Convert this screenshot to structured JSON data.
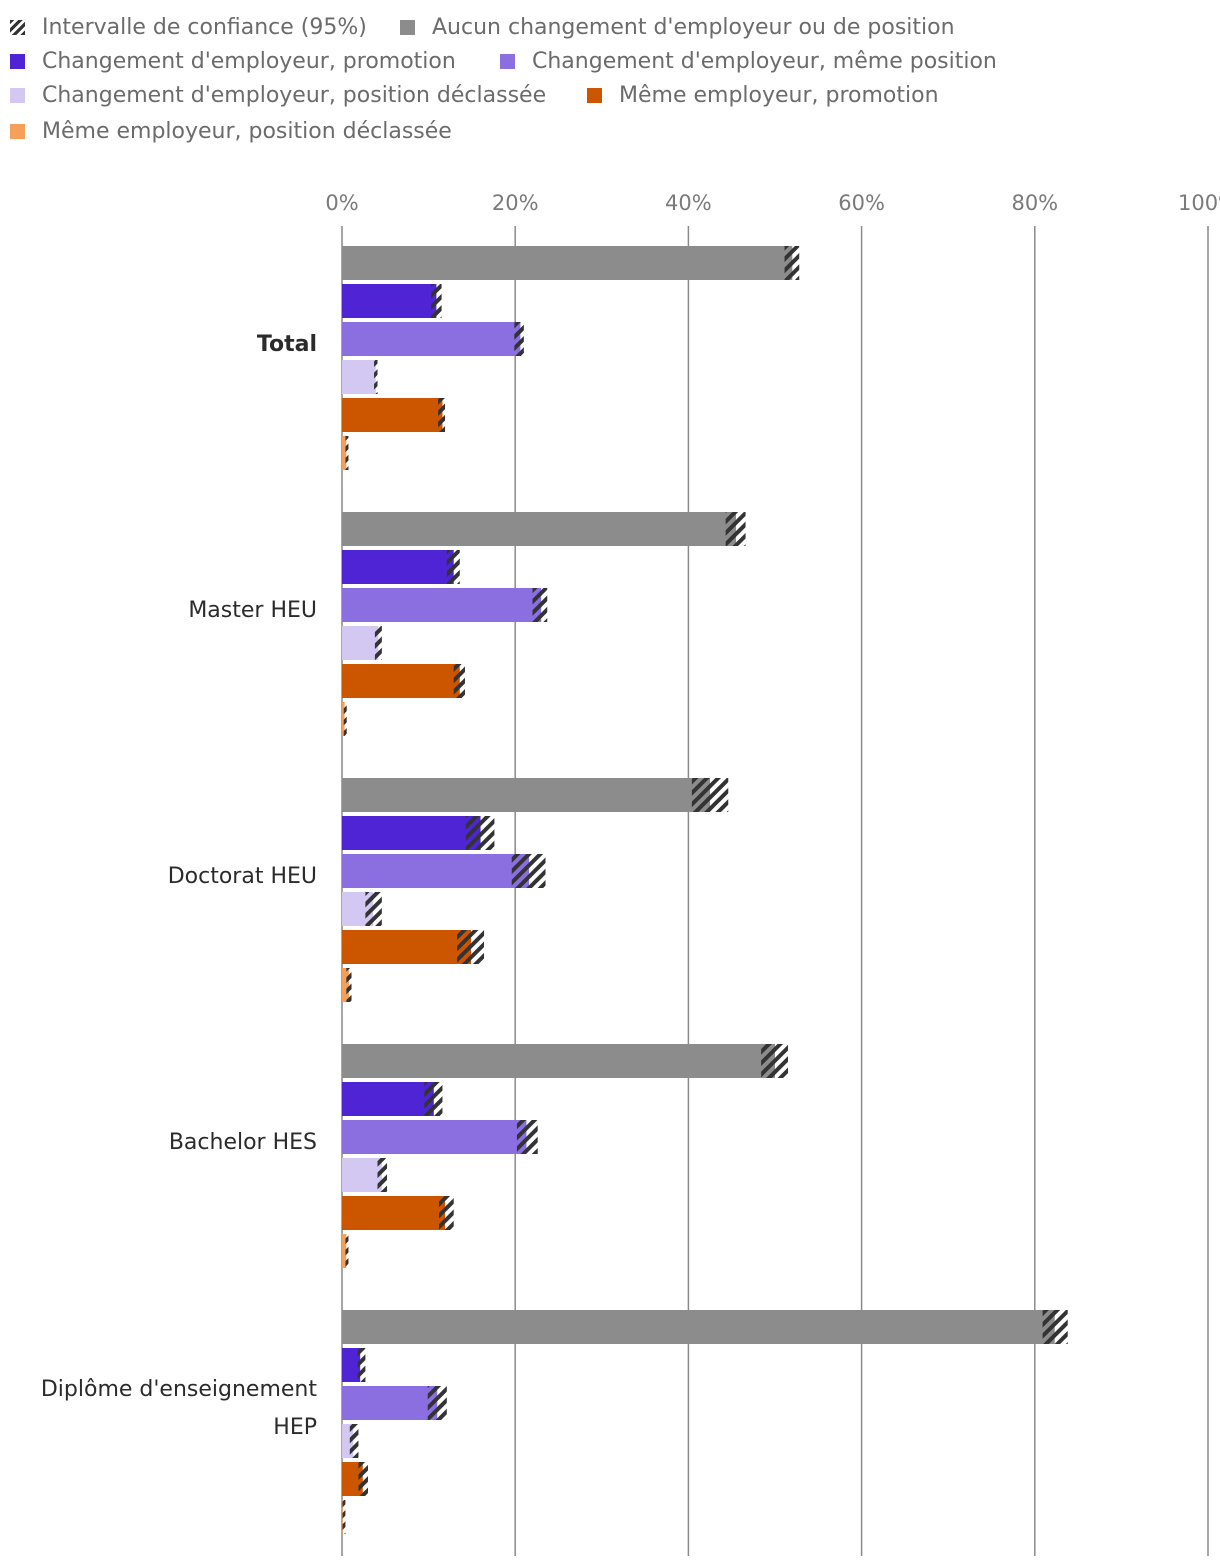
{
  "chart_data": {
    "type": "bar",
    "orientation": "horizontal",
    "title": "",
    "xlabel": "",
    "ylabel": "",
    "xlim": [
      0,
      100
    ],
    "x_ticks": [
      "0%",
      "20%",
      "40%",
      "60%",
      "80%",
      "100%"
    ],
    "grid": true,
    "legend_position": "top",
    "legend": {
      "ci_label": "Intervalle de confiance (95%)",
      "series_labels": [
        "Aucun changement d'employeur ou de position",
        "Changement d'employeur, promotion",
        "Changement d'employeur, même position",
        "Changement d'employeur, position déclassée",
        "Même employeur, promotion",
        "Même employeur, position déclassée"
      ]
    },
    "categories": [
      {
        "label": "Total",
        "bold": true
      },
      {
        "label": "Master HEU",
        "bold": false
      },
      {
        "label": "Doctorat HEU",
        "bold": false
      },
      {
        "label": "Bachelor HES",
        "bold": false
      },
      {
        "label": "Diplôme d'enseignement HEP",
        "label_lines": [
          "Diplôme d'enseignement",
          "HEP"
        ],
        "bold": false
      }
    ],
    "series": [
      {
        "name": "Aucun changement d'employeur ou de position",
        "color": "#8c8c8c",
        "values": [
          52.0,
          45.5,
          42.5,
          50.0,
          82.3
        ],
        "ci_low": [
          51.1,
          44.3,
          40.4,
          48.4,
          80.9
        ],
        "ci_high": [
          52.8,
          46.6,
          44.6,
          51.5,
          83.8
        ]
      },
      {
        "name": "Changement d'employeur, promotion",
        "color": "#4f24d4",
        "values": [
          10.9,
          12.9,
          16.0,
          10.6,
          2.1
        ],
        "ci_low": [
          10.3,
          12.1,
          14.3,
          9.5,
          1.8
        ],
        "ci_high": [
          11.5,
          13.6,
          17.6,
          11.6,
          2.7
        ]
      },
      {
        "name": "Changement d'employeur, même position",
        "color": "#8b6ee0",
        "values": [
          20.6,
          23.0,
          21.6,
          21.3,
          11.0
        ],
        "ci_low": [
          19.9,
          22.0,
          19.6,
          20.2,
          9.9
        ],
        "ci_high": [
          21.0,
          23.7,
          23.5,
          22.6,
          12.1
        ]
      },
      {
        "name": "Changement d'employeur, position déclassée",
        "color": "#d2c8f2",
        "values": [
          3.9,
          4.2,
          3.6,
          4.6,
          1.3
        ],
        "ci_low": [
          3.7,
          3.8,
          2.7,
          4.1,
          0.9
        ],
        "ci_high": [
          4.1,
          4.6,
          4.6,
          5.2,
          1.9
        ]
      },
      {
        "name": "Même employeur, promotion",
        "color": "#cc5500",
        "values": [
          11.6,
          13.6,
          14.9,
          11.9,
          2.4
        ],
        "ci_low": [
          11.1,
          12.9,
          13.3,
          11.2,
          1.9
        ],
        "ci_high": [
          11.9,
          14.2,
          16.4,
          12.9,
          3.0
        ]
      },
      {
        "name": "Même employeur, position déclassée",
        "color": "#f5a05a",
        "values": [
          0.5,
          0.3,
          0.8,
          0.5,
          0.1
        ],
        "ci_low": [
          0.4,
          0.2,
          0.5,
          0.4,
          0.05
        ],
        "ci_high": [
          0.6,
          0.5,
          1.1,
          0.7,
          0.2
        ]
      }
    ]
  }
}
